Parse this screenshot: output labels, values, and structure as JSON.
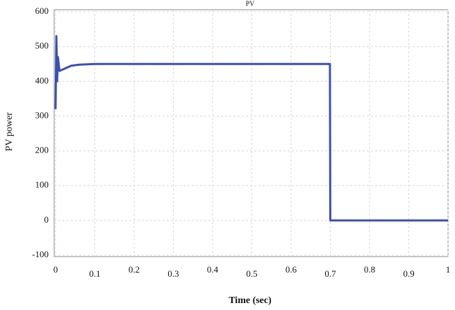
{
  "chart_data": {
    "type": "line",
    "title": "PV",
    "x_label": "Time (sec)",
    "y_label": "PV power",
    "x": [
      0,
      0.002,
      0.004,
      0.006,
      0.01,
      0.02,
      0.04,
      0.06,
      0.1,
      0.2,
      0.3,
      0.4,
      0.5,
      0.6,
      0.699,
      0.7,
      0.8,
      0.9,
      1
    ],
    "series": [
      {
        "name": "PV power",
        "color": "#3a4fb5",
        "values": [
          320,
          530,
          400,
          470,
          430,
          435,
          445,
          448,
          450,
          450,
          450,
          450,
          450,
          450,
          450,
          0,
          0,
          0,
          0
        ]
      }
    ],
    "xlim": [
      0,
      1
    ],
    "xticks": [
      0,
      0.1,
      0.2,
      0.3,
      0.4,
      0.5,
      0.6,
      0.7,
      0.8,
      0.9,
      1
    ],
    "ylim": [
      -100,
      600
    ],
    "yticks": [
      -100,
      0,
      100,
      200,
      300,
      400,
      500,
      600
    ],
    "grid": true
  }
}
